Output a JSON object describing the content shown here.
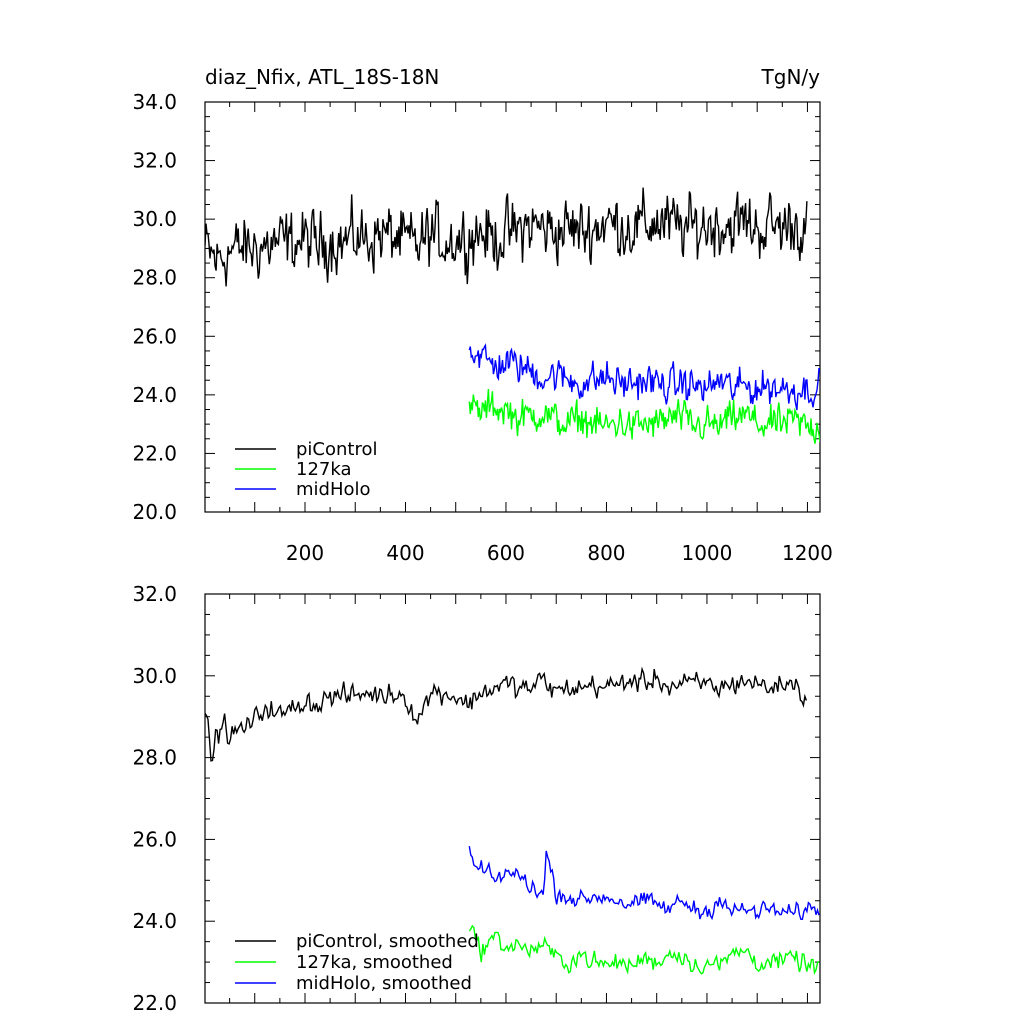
{
  "chart_data": [
    {
      "type": "line",
      "title": "diaz_Nfix, ATL_18S-18N",
      "units": "TgN/y",
      "xlim": [
        1,
        1225
      ],
      "ylim": [
        20,
        34
      ],
      "x_ticks": [
        {
          "value": 200,
          "label": "200"
        },
        {
          "value": 400,
          "label": "400"
        },
        {
          "value": 600,
          "label": "600"
        },
        {
          "value": 800,
          "label": "800"
        },
        {
          "value": 1000,
          "label": "1000"
        },
        {
          "value": 1200,
          "label": "1200"
        }
      ],
      "y_ticks": [
        {
          "value": 20,
          "label": "20.0"
        },
        {
          "value": 22,
          "label": "22.0"
        },
        {
          "value": 24,
          "label": "24.0"
        },
        {
          "value": 26,
          "label": "26.0"
        },
        {
          "value": 28,
          "label": "28.0"
        },
        {
          "value": 30,
          "label": "30.0"
        },
        {
          "value": 32,
          "label": "32.0"
        },
        {
          "value": 34,
          "label": "34.0"
        }
      ],
      "legend_position": "bottom-left",
      "series": [
        {
          "name": "piControl",
          "color": "#000000",
          "x_range": [
            1,
            1200
          ],
          "sampled": [
            [
              1,
              29.0
            ],
            [
              25,
              28.6
            ],
            [
              50,
              28.9
            ],
            [
              75,
              29.0
            ],
            [
              100,
              29.0
            ],
            [
              125,
              29.1
            ],
            [
              150,
              29.2
            ],
            [
              175,
              29.2
            ],
            [
              200,
              29.3
            ],
            [
              225,
              29.1
            ],
            [
              250,
              29.3
            ],
            [
              275,
              29.2
            ],
            [
              300,
              29.4
            ],
            [
              325,
              29.3
            ],
            [
              350,
              29.5
            ],
            [
              375,
              29.4
            ],
            [
              400,
              29.2
            ],
            [
              425,
              29.1
            ],
            [
              450,
              29.5
            ],
            [
              475,
              29.3
            ],
            [
              500,
              29.3
            ],
            [
              525,
              29.4
            ],
            [
              550,
              29.6
            ],
            [
              575,
              29.3
            ],
            [
              600,
              29.5
            ],
            [
              625,
              29.6
            ],
            [
              650,
              29.8
            ],
            [
              675,
              29.7
            ],
            [
              700,
              29.6
            ],
            [
              725,
              29.7
            ],
            [
              750,
              29.6
            ],
            [
              775,
              29.7
            ],
            [
              800,
              29.9
            ],
            [
              825,
              29.8
            ],
            [
              850,
              29.7
            ],
            [
              875,
              29.8
            ],
            [
              900,
              29.9
            ],
            [
              925,
              29.8
            ],
            [
              950,
              29.7
            ],
            [
              975,
              29.7
            ],
            [
              1000,
              29.8
            ],
            [
              1025,
              29.8
            ],
            [
              1050,
              29.8
            ],
            [
              1075,
              29.9
            ],
            [
              1100,
              29.7
            ],
            [
              1125,
              29.8
            ],
            [
              1150,
              29.7
            ],
            [
              1175,
              29.9
            ],
            [
              1200,
              29.5
            ]
          ]
        },
        {
          "name": "127ka",
          "color": "#00ff00",
          "x_range": [
            527,
            1225
          ],
          "sampled": [
            [
              527,
              23.6
            ],
            [
              550,
              23.4
            ],
            [
              575,
              23.6
            ],
            [
              600,
              23.5
            ],
            [
              625,
              23.2
            ],
            [
              650,
              23.3
            ],
            [
              675,
              23.4
            ],
            [
              700,
              23.1
            ],
            [
              725,
              23.0
            ],
            [
              750,
              23.2
            ],
            [
              775,
              23.0
            ],
            [
              800,
              22.9
            ],
            [
              825,
              23.1
            ],
            [
              850,
              22.9
            ],
            [
              875,
              23.0
            ],
            [
              900,
              23.0
            ],
            [
              925,
              23.2
            ],
            [
              950,
              23.2
            ],
            [
              975,
              22.9
            ],
            [
              1000,
              23.0
            ],
            [
              1025,
              22.9
            ],
            [
              1050,
              23.2
            ],
            [
              1075,
              23.3
            ],
            [
              1100,
              23.0
            ],
            [
              1125,
              23.0
            ],
            [
              1150,
              23.0
            ],
            [
              1175,
              23.1
            ],
            [
              1200,
              22.9
            ],
            [
              1225,
              22.9
            ]
          ]
        },
        {
          "name": "midHolo",
          "color": "#0000ff",
          "x_range": [
            527,
            1225
          ],
          "sampled": [
            [
              527,
              25.6
            ],
            [
              550,
              25.3
            ],
            [
              575,
              25.0
            ],
            [
              600,
              25.1
            ],
            [
              625,
              25.0
            ],
            [
              650,
              24.8
            ],
            [
              675,
              24.6
            ],
            [
              700,
              24.7
            ],
            [
              725,
              24.5
            ],
            [
              750,
              24.4
            ],
            [
              775,
              24.5
            ],
            [
              800,
              24.6
            ],
            [
              825,
              24.4
            ],
            [
              850,
              24.4
            ],
            [
              875,
              24.5
            ],
            [
              900,
              24.4
            ],
            [
              925,
              24.3
            ],
            [
              950,
              24.4
            ],
            [
              975,
              24.3
            ],
            [
              1000,
              24.2
            ],
            [
              1025,
              24.5
            ],
            [
              1050,
              24.2
            ],
            [
              1075,
              24.3
            ],
            [
              1100,
              24.2
            ],
            [
              1125,
              24.3
            ],
            [
              1150,
              24.2
            ],
            [
              1175,
              24.2
            ],
            [
              1200,
              24.2
            ],
            [
              1225,
              24.3
            ]
          ]
        }
      ]
    },
    {
      "type": "line",
      "xlim": [
        1,
        1225
      ],
      "ylim": [
        22,
        32
      ],
      "y_ticks": [
        {
          "value": 22,
          "label": "22.0"
        },
        {
          "value": 24,
          "label": "24.0"
        },
        {
          "value": 26,
          "label": "26.0"
        },
        {
          "value": 28,
          "label": "28.0"
        },
        {
          "value": 30,
          "label": "30.0"
        },
        {
          "value": 32,
          "label": "32.0"
        }
      ],
      "legend_position": "bottom-left",
      "series": [
        {
          "name": "piControl, smoothed",
          "color": "#000000",
          "x_range": [
            1,
            1200
          ],
          "sampled": [
            [
              1,
              29.2
            ],
            [
              5,
              29.1
            ],
            [
              10,
              28.3
            ],
            [
              15,
              28.0
            ],
            [
              25,
              28.6
            ],
            [
              40,
              28.8
            ],
            [
              50,
              28.5
            ],
            [
              75,
              28.7
            ],
            [
              100,
              28.9
            ],
            [
              125,
              29.3
            ],
            [
              150,
              29.0
            ],
            [
              175,
              29.2
            ],
            [
              200,
              29.4
            ],
            [
              225,
              29.3
            ],
            [
              250,
              29.5
            ],
            [
              275,
              29.5
            ],
            [
              300,
              29.5
            ],
            [
              325,
              29.6
            ],
            [
              350,
              29.5
            ],
            [
              375,
              29.6
            ],
            [
              400,
              29.5
            ],
            [
              425,
              28.9
            ],
            [
              450,
              29.6
            ],
            [
              475,
              29.6
            ],
            [
              500,
              29.5
            ],
            [
              525,
              29.3
            ],
            [
              550,
              29.6
            ],
            [
              575,
              29.7
            ],
            [
              600,
              29.8
            ],
            [
              625,
              29.7
            ],
            [
              650,
              29.7
            ],
            [
              675,
              29.9
            ],
            [
              700,
              29.6
            ],
            [
              725,
              29.7
            ],
            [
              750,
              29.7
            ],
            [
              775,
              29.8
            ],
            [
              800,
              29.7
            ],
            [
              825,
              29.8
            ],
            [
              850,
              29.9
            ],
            [
              875,
              29.8
            ],
            [
              900,
              30.0
            ],
            [
              925,
              29.7
            ],
            [
              950,
              29.8
            ],
            [
              975,
              29.8
            ],
            [
              1000,
              29.8
            ],
            [
              1025,
              29.7
            ],
            [
              1050,
              29.8
            ],
            [
              1075,
              29.9
            ],
            [
              1100,
              29.8
            ],
            [
              1125,
              29.7
            ],
            [
              1150,
              29.8
            ],
            [
              1175,
              29.8
            ],
            [
              1200,
              29.4
            ]
          ]
        },
        {
          "name": "127ka, smoothed",
          "color": "#00ff00",
          "x_range": [
            527,
            1225
          ],
          "sampled": [
            [
              527,
              23.9
            ],
            [
              550,
              23.3
            ],
            [
              575,
              23.6
            ],
            [
              600,
              23.4
            ],
            [
              625,
              23.4
            ],
            [
              650,
              23.3
            ],
            [
              675,
              23.4
            ],
            [
              700,
              23.1
            ],
            [
              725,
              23.0
            ],
            [
              750,
              23.2
            ],
            [
              775,
              23.0
            ],
            [
              800,
              22.9
            ],
            [
              825,
              23.0
            ],
            [
              850,
              22.9
            ],
            [
              875,
              23.1
            ],
            [
              900,
              23.0
            ],
            [
              925,
              23.2
            ],
            [
              950,
              23.2
            ],
            [
              975,
              22.9
            ],
            [
              1000,
              23.0
            ],
            [
              1025,
              22.9
            ],
            [
              1050,
              23.2
            ],
            [
              1075,
              23.3
            ],
            [
              1100,
              23.0
            ],
            [
              1125,
              23.0
            ],
            [
              1150,
              23.0
            ],
            [
              1175,
              23.1
            ],
            [
              1200,
              22.9
            ],
            [
              1225,
              22.9
            ]
          ]
        },
        {
          "name": "midHolo, smoothed",
          "color": "#0000ff",
          "x_range": [
            527,
            1225
          ],
          "sampled": [
            [
              527,
              25.8
            ],
            [
              540,
              25.2
            ],
            [
              550,
              25.3
            ],
            [
              575,
              25.0
            ],
            [
              600,
              25.2
            ],
            [
              625,
              25.1
            ],
            [
              650,
              24.9
            ],
            [
              675,
              24.6
            ],
            [
              680,
              25.7
            ],
            [
              700,
              24.7
            ],
            [
              725,
              24.6
            ],
            [
              750,
              24.5
            ],
            [
              775,
              24.6
            ],
            [
              800,
              24.6
            ],
            [
              825,
              24.5
            ],
            [
              850,
              24.4
            ],
            [
              875,
              24.5
            ],
            [
              900,
              24.4
            ],
            [
              925,
              24.3
            ],
            [
              950,
              24.5
            ],
            [
              975,
              24.3
            ],
            [
              1000,
              24.2
            ],
            [
              1025,
              24.6
            ],
            [
              1050,
              24.2
            ],
            [
              1075,
              24.3
            ],
            [
              1100,
              24.2
            ],
            [
              1125,
              24.3
            ],
            [
              1150,
              24.2
            ],
            [
              1175,
              24.2
            ],
            [
              1200,
              24.3
            ],
            [
              1225,
              24.3
            ]
          ]
        }
      ]
    }
  ]
}
